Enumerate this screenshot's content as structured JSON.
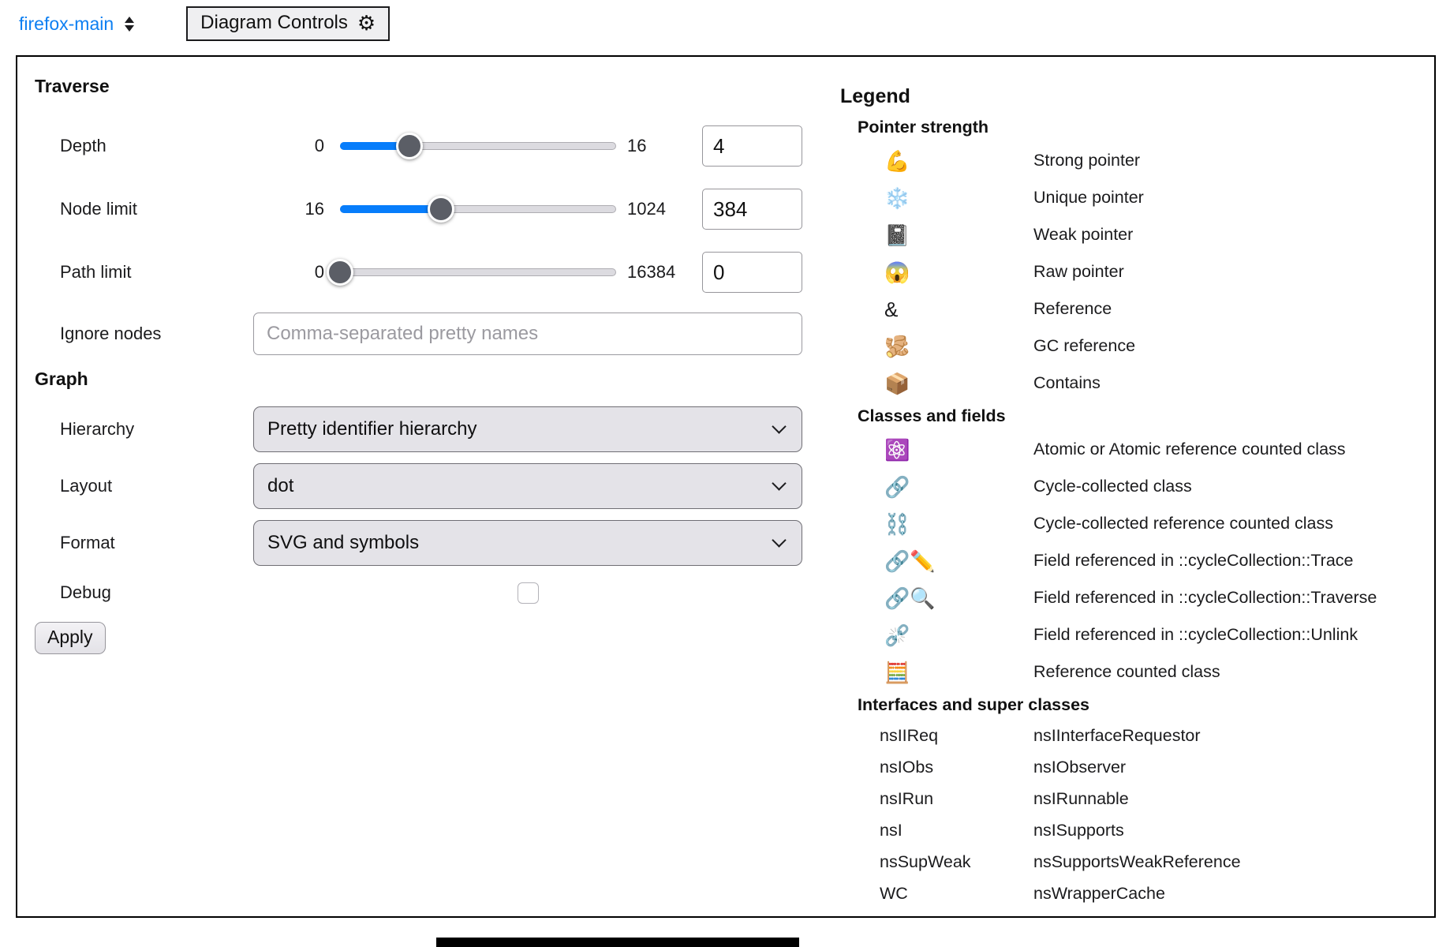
{
  "header": {
    "workspace_label": "firefox-main",
    "panel_toggle_label": "Diagram Controls",
    "gear_icon": "⚙"
  },
  "traverse": {
    "title": "Traverse",
    "sliders": [
      {
        "label": "Depth",
        "min": "0",
        "max": "16",
        "value": "4",
        "percent": 25
      },
      {
        "label": "Node limit",
        "min": "16",
        "max": "1024",
        "value": "384",
        "percent": 36.5
      },
      {
        "label": "Path limit",
        "min": "0",
        "max": "16384",
        "value": "0",
        "percent": 0
      }
    ],
    "ignore": {
      "label": "Ignore nodes",
      "placeholder": "Comma-separated pretty names",
      "value": ""
    }
  },
  "graph": {
    "title": "Graph",
    "selects": [
      {
        "label": "Hierarchy",
        "value": "Pretty identifier hierarchy"
      },
      {
        "label": "Layout",
        "value": "dot"
      },
      {
        "label": "Format",
        "value": "SVG and symbols"
      }
    ],
    "debug": {
      "label": "Debug",
      "checked": false
    },
    "apply_label": "Apply"
  },
  "legend": {
    "title": "Legend",
    "pointer_strength": {
      "heading": "Pointer strength",
      "items": [
        {
          "icon": "💪",
          "icon_name": "flexed-biceps-icon",
          "label": "Strong pointer"
        },
        {
          "icon": "❄️",
          "icon_name": "snowflake-icon",
          "label": "Unique pointer"
        },
        {
          "icon": "📓",
          "icon_name": "notebook-icon",
          "label": "Weak pointer"
        },
        {
          "icon": "😱",
          "icon_name": "screaming-face-icon",
          "label": "Raw pointer"
        },
        {
          "icon": "&",
          "icon_name": "ampersand-symbol",
          "label": "Reference"
        },
        {
          "icon": "🫚",
          "icon_name": "ginger-root-icon",
          "label": "GC reference"
        },
        {
          "icon": "📦",
          "icon_name": "package-icon",
          "label": "Contains"
        }
      ]
    },
    "classes_fields": {
      "heading": "Classes and fields",
      "items": [
        {
          "icon": "⚛️",
          "icon_name": "atom-symbol-icon",
          "label": "Atomic or Atomic reference counted class"
        },
        {
          "icon": "🔗",
          "icon_name": "link-icon",
          "label": "Cycle-collected class"
        },
        {
          "icon": "⛓️",
          "icon_name": "chains-icon",
          "label": "Cycle-collected reference counted class"
        },
        {
          "icon": "🔗✏️",
          "icon_name": "link-pencil-icon",
          "label": "Field referenced in ::cycleCollection::Trace"
        },
        {
          "icon": "🔗🔍",
          "icon_name": "link-magnifier-icon",
          "label": "Field referenced in ::cycleCollection::Traverse"
        },
        {
          "icon": "⛓️‍💥",
          "icon_name": "broken-chain-icon",
          "label": "Field referenced in ::cycleCollection::Unlink"
        },
        {
          "icon": "🧮",
          "icon_name": "abacus-icon",
          "label": "Reference counted class"
        }
      ]
    },
    "interfaces": {
      "heading": "Interfaces and super classes",
      "items": [
        {
          "abbr": "nsIIReq",
          "label": "nsIInterfaceRequestor"
        },
        {
          "abbr": "nsIObs",
          "label": "nsIObserver"
        },
        {
          "abbr": "nsIRun",
          "label": "nsIRunnable"
        },
        {
          "abbr": "nsI",
          "label": "nsISupports"
        },
        {
          "abbr": "nsSupWeak",
          "label": "nsSupportsWeakReference"
        },
        {
          "abbr": "WC",
          "label": "nsWrapperCache"
        }
      ]
    }
  },
  "colors": {
    "accent_blue": "#077dfb",
    "link_blue": "#0d7ff2",
    "slider_thumb": "#5b5e66",
    "select_bg": "#e4e3e8"
  }
}
